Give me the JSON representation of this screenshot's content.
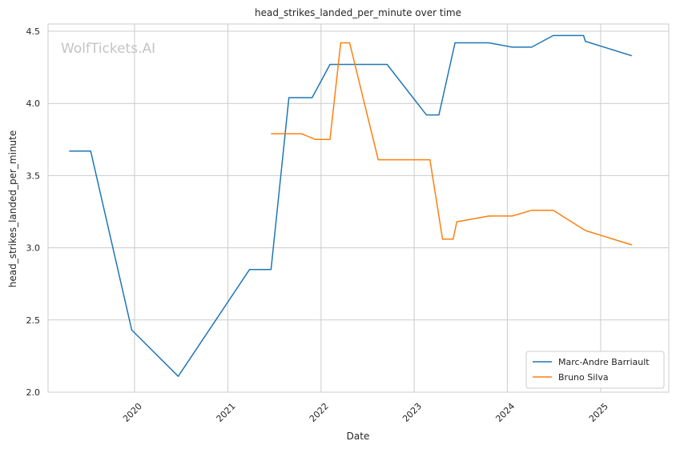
{
  "chart_data": {
    "type": "line",
    "title": "head_strikes_landed_per_minute over time",
    "xlabel": "Date",
    "ylabel": "head_strikes_landed_per_minute",
    "xlim": [
      "2019-01-27",
      "2025-09-25"
    ],
    "ylim": [
      2.0,
      4.55
    ],
    "x_ticks": [
      "2020",
      "2021",
      "2022",
      "2023",
      "2024",
      "2025"
    ],
    "y_ticks": [
      "2.0",
      "2.5",
      "3.0",
      "3.5",
      "4.0",
      "4.5"
    ],
    "grid": true,
    "legend_position": "lower-right",
    "watermark": "WolfTickets.AI",
    "series": [
      {
        "name": "Marc-Andre Barriault",
        "color": "#1f77b4",
        "points": [
          [
            "2019-04-20",
            3.67
          ],
          [
            "2019-07-13",
            3.67
          ],
          [
            "2019-12-21",
            2.43
          ],
          [
            "2020-06-20",
            2.11
          ],
          [
            "2021-03-27",
            2.85
          ],
          [
            "2021-06-19",
            2.85
          ],
          [
            "2021-08-28",
            4.04
          ],
          [
            "2021-11-27",
            4.04
          ],
          [
            "2022-02-05",
            4.27
          ],
          [
            "2022-05-14",
            4.27
          ],
          [
            "2022-09-17",
            4.27
          ],
          [
            "2023-02-18",
            3.92
          ],
          [
            "2023-04-08",
            3.92
          ],
          [
            "2023-06-10",
            4.42
          ],
          [
            "2023-10-21",
            4.42
          ],
          [
            "2024-01-20",
            4.39
          ],
          [
            "2024-04-06",
            4.39
          ],
          [
            "2024-06-29",
            4.47
          ],
          [
            "2024-10-26",
            4.47
          ],
          [
            "2024-11-02",
            4.43
          ],
          [
            "2025-05-03",
            4.33
          ]
        ]
      },
      {
        "name": "Bruno Silva",
        "color": "#ff7f0e",
        "points": [
          [
            "2021-06-19",
            3.79
          ],
          [
            "2021-10-16",
            3.79
          ],
          [
            "2021-12-11",
            3.75
          ],
          [
            "2022-02-05",
            3.75
          ],
          [
            "2022-03-19",
            4.42
          ],
          [
            "2022-04-23",
            4.42
          ],
          [
            "2022-08-13",
            3.61
          ],
          [
            "2023-03-04",
            3.61
          ],
          [
            "2023-04-22",
            3.06
          ],
          [
            "2023-06-03",
            3.06
          ],
          [
            "2023-06-17",
            3.18
          ],
          [
            "2023-10-21",
            3.22
          ],
          [
            "2024-01-20",
            3.22
          ],
          [
            "2024-04-06",
            3.26
          ],
          [
            "2024-06-29",
            3.26
          ],
          [
            "2024-11-02",
            3.12
          ],
          [
            "2025-05-03",
            3.02
          ]
        ]
      }
    ]
  }
}
